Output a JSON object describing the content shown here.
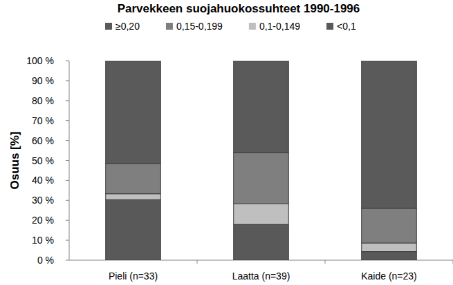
{
  "chart_data": {
    "type": "bar",
    "stacked": true,
    "title": "Parvekkeen suojahuokossuhteet 1990-1996",
    "y_label": "Osuus [%]",
    "categories": [
      "Pieli (n=33)",
      "Laatta (n=39)",
      "Kaide (n=23)"
    ],
    "series": [
      {
        "name": "<0,1",
        "color": "#595959",
        "values": [
          30.3,
          17.9,
          4.3
        ]
      },
      {
        "name": "0,1-0,149",
        "color": "#bfbfbf",
        "values": [
          3.0,
          10.3,
          4.3
        ]
      },
      {
        "name": "0,15-0,199",
        "color": "#7f7f7f",
        "values": [
          15.2,
          25.6,
          17.4
        ]
      },
      {
        "name": "≥0,20",
        "color": "#5a5a5a",
        "values": [
          51.5,
          46.2,
          74.0
        ]
      }
    ],
    "ylim": [
      0,
      100
    ],
    "yticks": [
      {
        "value": 0,
        "label": "0 %"
      },
      {
        "value": 10,
        "label": "10 %"
      },
      {
        "value": 20,
        "label": "20 %"
      },
      {
        "value": 30,
        "label": "30 %"
      },
      {
        "value": 40,
        "label": "40 %"
      },
      {
        "value": 50,
        "label": "50 %"
      },
      {
        "value": 60,
        "label": "60 %"
      },
      {
        "value": 70,
        "label": "70 %"
      },
      {
        "value": 80,
        "label": "80 %"
      },
      {
        "value": 90,
        "label": "90 %"
      },
      {
        "value": 100,
        "label": "100 %"
      }
    ],
    "grid": false,
    "legend": "top"
  }
}
